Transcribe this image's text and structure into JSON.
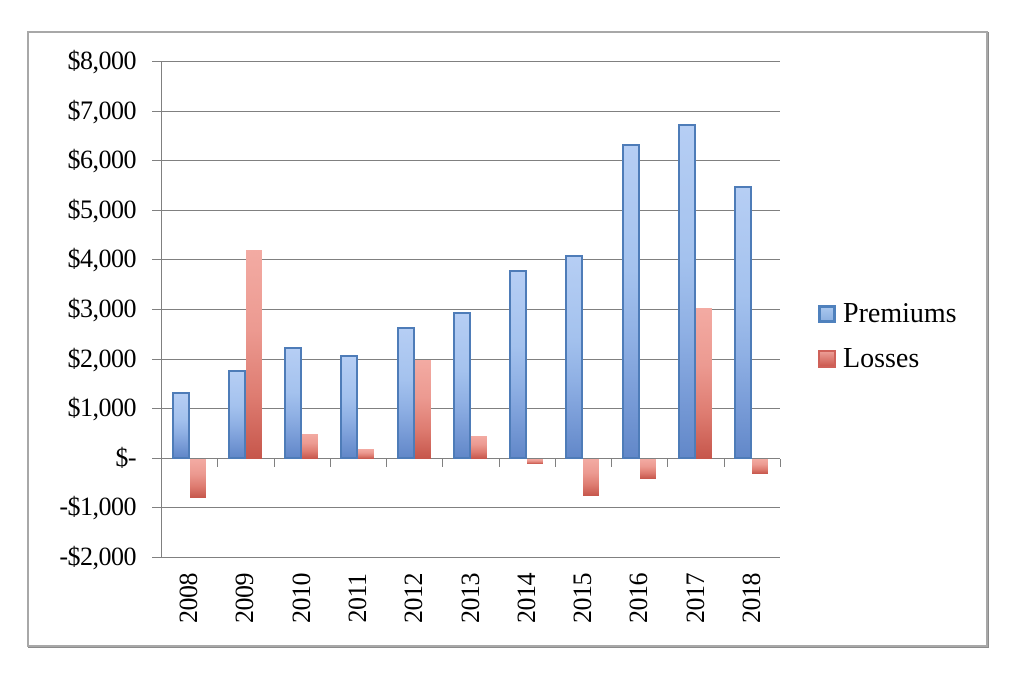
{
  "chart": {
    "frame_border_color": "#A8A8A8",
    "gridline_color": "#808080",
    "background_color": "#FFFFFF",
    "text_color": "#000000"
  },
  "chart_data": {
    "type": "bar",
    "title": "",
    "xlabel": "",
    "ylabel": "",
    "categories": [
      "2008",
      "2009",
      "2010",
      "2011",
      "2012",
      "2013",
      "2014",
      "2015",
      "2016",
      "2017",
      "2018"
    ],
    "series": [
      {
        "name": "Premiums",
        "color": "#4F81BD",
        "fill_top": "#B6CEF4",
        "fill_bottom": "#6288C9",
        "values": [
          1350,
          1800,
          2250,
          2100,
          2650,
          2950,
          3800,
          4100,
          6350,
          6750,
          5500
        ]
      },
      {
        "name": "Losses",
        "color": "#C0504D",
        "fill_top": "#F3ABA3",
        "fill_bottom": "#C6564B",
        "values": [
          -800,
          4200,
          500,
          200,
          2000,
          450,
          -100,
          -750,
          -400,
          3050,
          -300
        ]
      }
    ],
    "ylim": [
      -2000,
      8000
    ],
    "ytick_step": 1000,
    "ytick_values": [
      8000,
      7000,
      6000,
      5000,
      4000,
      3000,
      2000,
      1000,
      0,
      -1000,
      -2000
    ],
    "ytick_labels": [
      "$8,000",
      "$7,000",
      "$6,000",
      "$5,000",
      "$4,000",
      "$3,000",
      "$2,000",
      "$1,000",
      "$-",
      "-$1,000",
      "-$2,000"
    ],
    "grid": true,
    "x_labels_rotated_degrees": 90,
    "legend_position": "right"
  }
}
